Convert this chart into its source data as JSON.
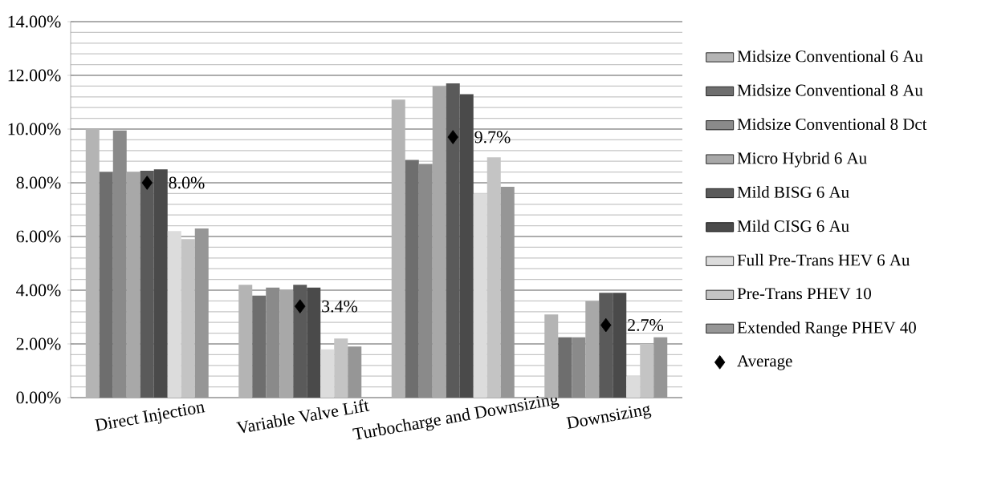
{
  "chart_data": {
    "type": "bar",
    "categories": [
      "Direct Injection",
      "Variable Valve Lift",
      "Turbocharge and Downsizing",
      "Downsizing"
    ],
    "series": [
      {
        "name": "Midsize Conventional 6 Au",
        "color": "#b4b4b4",
        "values": [
          10.0,
          4.2,
          11.1,
          3.1
        ]
      },
      {
        "name": "Midsize Conventional 8 Au",
        "color": "#6e6e6e",
        "values": [
          8.4,
          3.8,
          8.85,
          2.25
        ]
      },
      {
        "name": "Midsize Conventional 8 Dct",
        "color": "#8a8a8a",
        "values": [
          9.95,
          4.1,
          8.7,
          2.25
        ]
      },
      {
        "name": "Micro Hybrid 6 Au",
        "color": "#a8a8a8",
        "values": [
          8.4,
          4.0,
          11.6,
          3.6
        ]
      },
      {
        "name": "Mild BISG 6 Au",
        "color": "#5a5a5a",
        "values": [
          8.45,
          4.2,
          11.7,
          3.9
        ]
      },
      {
        "name": "Mild CISG 6 Au",
        "color": "#4a4a4a",
        "values": [
          8.5,
          4.1,
          11.3,
          3.9
        ]
      },
      {
        "name": "Full Pre-Trans HEV 6 Au",
        "color": "#dcdcdc",
        "values": [
          6.2,
          1.8,
          7.6,
          0.8
        ]
      },
      {
        "name": "Pre-Trans PHEV 10",
        "color": "#c4c4c4",
        "values": [
          5.9,
          2.2,
          8.95,
          2.0
        ]
      },
      {
        "name": "Extended Range PHEV 40",
        "color": "#969696",
        "values": [
          6.3,
          1.9,
          7.85,
          2.25
        ]
      },
      {
        "name": "Average",
        "type": "scatter",
        "marker": "diamond",
        "color": "#000000",
        "values": [
          8.0,
          3.4,
          9.7,
          2.7
        ],
        "value_labels": [
          "8.0%",
          "3.4%",
          "9.7%",
          "2.7%"
        ]
      }
    ],
    "ylim": [
      0,
      14
    ],
    "yticks": [
      {
        "value": 0,
        "label": "0.00%"
      },
      {
        "value": 2,
        "label": "2.00%"
      },
      {
        "value": 4,
        "label": "4.00%"
      },
      {
        "value": 6,
        "label": "6.00%"
      },
      {
        "value": 8,
        "label": "8.00%"
      },
      {
        "value": 10,
        "label": "10.00%"
      },
      {
        "value": 12,
        "label": "12.00%"
      },
      {
        "value": 14,
        "label": "14.00%"
      }
    ],
    "grid": "y",
    "legend": "right"
  }
}
